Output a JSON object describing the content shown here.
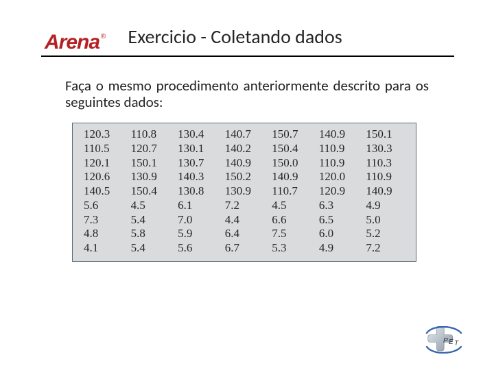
{
  "logo": {
    "text": "Arena",
    "trademark": "®",
    "color": "#b42024",
    "font_size": 30
  },
  "title": "Exercicio - Coletando dados",
  "body": "Faça o mesmo procedimento anteriormente descrito para os seguintes dados:",
  "data_table": {
    "background": "#d9dbdc",
    "border_color": "#5a6a78",
    "font_family": "Times New Roman",
    "font_size": 17,
    "columns": 7,
    "rows": [
      [
        "120.3",
        "110.8",
        "130.4",
        "140.7",
        "150.7",
        "140.9",
        "150.1"
      ],
      [
        "110.5",
        "120.7",
        "130.1",
        "140.2",
        "150.4",
        "110.9",
        "130.3"
      ],
      [
        "120.1",
        "150.1",
        "130.7",
        "140.9",
        "150.0",
        "110.9",
        "110.3"
      ],
      [
        "120.6",
        "130.9",
        "140.3",
        "150.2",
        "140.9",
        "120.0",
        "110.9"
      ],
      [
        "140.5",
        "150.4",
        "130.8",
        "130.9",
        "110.7",
        "120.9",
        "140.9"
      ],
      [
        "5.6",
        "4.5",
        "6.1",
        "7.2",
        "4.5",
        "6.3",
        "4.9"
      ],
      [
        "7.3",
        "5.4",
        "7.0",
        "4.4",
        "6.6",
        "6.5",
        "5.0"
      ],
      [
        "4.8",
        "5.8",
        "5.9",
        "6.4",
        "7.5",
        "6.0",
        "5.2"
      ],
      [
        "4.1",
        "5.4",
        "5.6",
        "6.7",
        "5.3",
        "4.9",
        "7.2"
      ]
    ]
  },
  "footer_logo": {
    "accent": "#3a66b0",
    "cross_start": "#cfd6de",
    "cross_end": "#8a97a6",
    "text": "PET"
  }
}
